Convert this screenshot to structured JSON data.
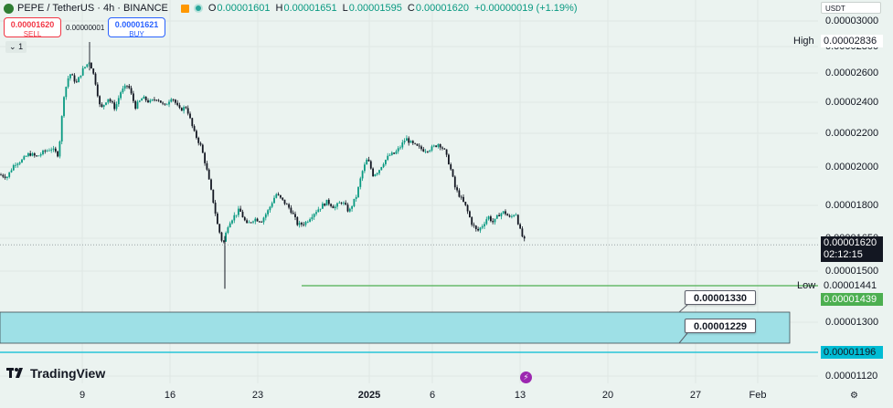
{
  "header": {
    "symbol_title": "PEPE / TetherUS · 4h · BINANCE",
    "ohlc": [
      {
        "key": "O",
        "value": "0.00001601"
      },
      {
        "key": "H",
        "value": "0.00001651"
      },
      {
        "key": "L",
        "value": "0.00001595"
      },
      {
        "key": "C",
        "value": "0.00001620"
      }
    ],
    "change": "+0.00000019 (+1.19%)",
    "sell_price": "0.00001620",
    "sell_label": "SELL",
    "spread": "0.00000001",
    "buy_price": "0.00001621",
    "buy_label": "BUY",
    "indicator_toggle": "1",
    "currency": "USDT"
  },
  "colors": {
    "up": "#089981",
    "down": "#131722",
    "low_line": "#4caf50",
    "zone_fill": "#9ee0e6",
    "zone_line": "#00bcd4",
    "background": "#ebf3f0"
  },
  "chart_data": {
    "type": "candlestick",
    "timeframe": "4h",
    "y_axis_ticks": [
      "0.00003000",
      "0.00002800",
      "0.00002600",
      "0.00002400",
      "0.00002200",
      "0.00002000",
      "0.00001800",
      "0.00001650",
      "0.00001500",
      "0.00001300",
      "0.00001120"
    ],
    "x_axis_ticks": [
      "9",
      "16",
      "23",
      "2025",
      "6",
      "13",
      "20",
      "27",
      "Feb"
    ],
    "anchor_points": [
      {
        "x": 0,
        "y": 1.96e-05
      },
      {
        "x": 8,
        "y": 1.95e-05
      },
      {
        "x": 16,
        "y": 2.02e-05
      },
      {
        "x": 24,
        "y": 2.04e-05
      },
      {
        "x": 32,
        "y": 2.08e-05
      },
      {
        "x": 40,
        "y": 2.06e-05
      },
      {
        "x": 48,
        "y": 2.09e-05
      },
      {
        "x": 56,
        "y": 2.11e-05
      },
      {
        "x": 64,
        "y": 2.07e-05
      },
      {
        "x": 70,
        "y": 2.45e-05
      },
      {
        "x": 76,
        "y": 2.6e-05
      },
      {
        "x": 84,
        "y": 2.53e-05
      },
      {
        "x": 90,
        "y": 2.62e-05
      },
      {
        "x": 98,
        "y": 2.69e-05
      },
      {
        "x": 104,
        "y": 2.55e-05
      },
      {
        "x": 110,
        "y": 2.35e-05
      },
      {
        "x": 118,
        "y": 2.43e-05
      },
      {
        "x": 126,
        "y": 2.36e-05
      },
      {
        "x": 132,
        "y": 2.47e-05
      },
      {
        "x": 140,
        "y": 2.52e-05
      },
      {
        "x": 148,
        "y": 2.37e-05
      },
      {
        "x": 156,
        "y": 2.43e-05
      },
      {
        "x": 164,
        "y": 2.4e-05
      },
      {
        "x": 172,
        "y": 2.43e-05
      },
      {
        "x": 180,
        "y": 2.37e-05
      },
      {
        "x": 188,
        "y": 2.44e-05
      },
      {
        "x": 196,
        "y": 2.35e-05
      },
      {
        "x": 204,
        "y": 2.37e-05
      },
      {
        "x": 212,
        "y": 2.21e-05
      },
      {
        "x": 220,
        "y": 2.12e-05
      },
      {
        "x": 226,
        "y": 1.99e-05
      },
      {
        "x": 232,
        "y": 1.85e-05
      },
      {
        "x": 238,
        "y": 1.71e-05
      },
      {
        "x": 244,
        "y": 1.62e-05
      },
      {
        "x": 250,
        "y": 1.72e-05
      },
      {
        "x": 256,
        "y": 1.75e-05
      },
      {
        "x": 262,
        "y": 1.78e-05
      },
      {
        "x": 270,
        "y": 1.71e-05
      },
      {
        "x": 278,
        "y": 1.74e-05
      },
      {
        "x": 286,
        "y": 1.73e-05
      },
      {
        "x": 294,
        "y": 1.78e-05
      },
      {
        "x": 302,
        "y": 1.86e-05
      },
      {
        "x": 310,
        "y": 1.82e-05
      },
      {
        "x": 318,
        "y": 1.78e-05
      },
      {
        "x": 326,
        "y": 1.71e-05
      },
      {
        "x": 334,
        "y": 1.72e-05
      },
      {
        "x": 342,
        "y": 1.76e-05
      },
      {
        "x": 350,
        "y": 1.79e-05
      },
      {
        "x": 358,
        "y": 1.82e-05
      },
      {
        "x": 366,
        "y": 1.79e-05
      },
      {
        "x": 374,
        "y": 1.82e-05
      },
      {
        "x": 382,
        "y": 1.77e-05
      },
      {
        "x": 390,
        "y": 1.85e-05
      },
      {
        "x": 396,
        "y": 1.97e-05
      },
      {
        "x": 402,
        "y": 2.05e-05
      },
      {
        "x": 408,
        "y": 1.96e-05
      },
      {
        "x": 414,
        "y": 1.98e-05
      },
      {
        "x": 420,
        "y": 2.03e-05
      },
      {
        "x": 426,
        "y": 2.07e-05
      },
      {
        "x": 432,
        "y": 2.08e-05
      },
      {
        "x": 438,
        "y": 2.12e-05
      },
      {
        "x": 444,
        "y": 2.17e-05
      },
      {
        "x": 450,
        "y": 2.14e-05
      },
      {
        "x": 456,
        "y": 2.12e-05
      },
      {
        "x": 464,
        "y": 2.1e-05
      },
      {
        "x": 472,
        "y": 2.11e-05
      },
      {
        "x": 480,
        "y": 2.14e-05
      },
      {
        "x": 486,
        "y": 2.1e-05
      },
      {
        "x": 492,
        "y": 2.01e-05
      },
      {
        "x": 498,
        "y": 1.89e-05
      },
      {
        "x": 504,
        "y": 1.84e-05
      },
      {
        "x": 510,
        "y": 1.79e-05
      },
      {
        "x": 516,
        "y": 1.72e-05
      },
      {
        "x": 522,
        "y": 1.68e-05
      },
      {
        "x": 528,
        "y": 1.71e-05
      },
      {
        "x": 534,
        "y": 1.75e-05
      },
      {
        "x": 540,
        "y": 1.72e-05
      },
      {
        "x": 546,
        "y": 1.76e-05
      },
      {
        "x": 552,
        "y": 1.77e-05
      },
      {
        "x": 558,
        "y": 1.74e-05
      },
      {
        "x": 564,
        "y": 1.77e-05
      },
      {
        "x": 570,
        "y": 1.67e-05
      },
      {
        "x": 576,
        "y": 1.62e-05
      }
    ],
    "high_label": "High",
    "high_value": "0.00002836",
    "low_label": "Low",
    "low_value": "0.00001441",
    "last_price": "0.00001620",
    "countdown": "02:12:15",
    "low_line_value": "0.00001439",
    "zone_upper": "0.00001330",
    "zone_lower": "0.00001229",
    "zone_line_value": "0.00001196",
    "zone_upper_value": 1.33e-05,
    "zone_lower_value": 1.229e-05,
    "low_line_price": 1.439e-05,
    "zone_line_price": 1.196e-05
  },
  "branding": {
    "name": "TradingView"
  },
  "icons": {
    "settings": "gear-icon",
    "event": "lightning-icon"
  }
}
